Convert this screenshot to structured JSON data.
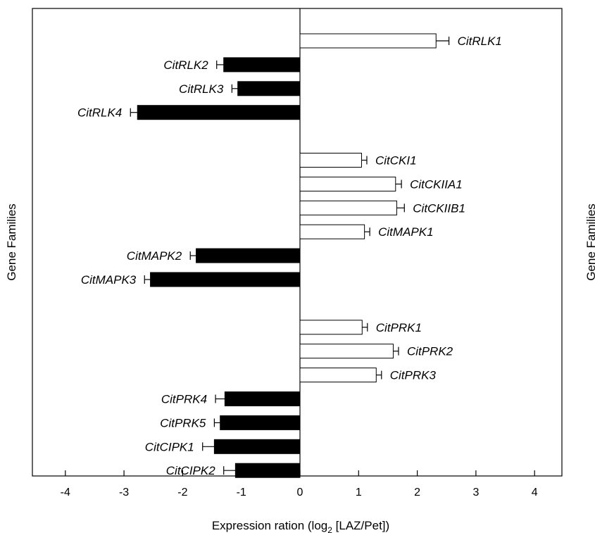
{
  "chart_data": {
    "type": "bar",
    "orientation": "horizontal",
    "ylabel": "Gene Families",
    "ylabel_right": "Gene Families",
    "xlabel_main": "Expression ration (log",
    "xlabel_sub": "2",
    "xlabel_tail": " [LAZ/Pet])",
    "xlim": [
      -4.5,
      4.5
    ],
    "xticks": [
      -4,
      -3,
      -2,
      -1,
      0,
      1,
      2,
      3,
      4
    ],
    "xtick_labels": [
      "-4",
      "-3",
      "-2",
      "-1",
      "0",
      "1",
      "2",
      "3",
      "4"
    ],
    "grid": false,
    "colors": {
      "positive": "#ffffff",
      "negative": "#000000",
      "stroke": "#000000"
    },
    "rows": [
      {
        "slot": 0,
        "label": "CitRLK1",
        "value": 2.32,
        "error": 0.22
      },
      {
        "slot": 1,
        "label": "CitRLK2",
        "value": -1.3,
        "error": 0.12
      },
      {
        "slot": 2,
        "label": "CitRLK3",
        "value": -1.06,
        "error": 0.1
      },
      {
        "slot": 3,
        "label": "CitRLK4",
        "value": -2.77,
        "error": 0.12
      },
      {
        "slot": 5,
        "label": "CitCKI1",
        "value": 1.05,
        "error": 0.09
      },
      {
        "slot": 6,
        "label": "CitCKIIA1",
        "value": 1.63,
        "error": 0.1
      },
      {
        "slot": 7,
        "label": "CitCKIIB1",
        "value": 1.65,
        "error": 0.13
      },
      {
        "slot": 8,
        "label": "CitMAPK1",
        "value": 1.1,
        "error": 0.09
      },
      {
        "slot": 9,
        "label": "CitMAPK2",
        "value": -1.77,
        "error": 0.1
      },
      {
        "slot": 10,
        "label": "CitMAPK3",
        "value": -2.55,
        "error": 0.1
      },
      {
        "slot": 12,
        "label": "CitPRK1",
        "value": 1.06,
        "error": 0.09
      },
      {
        "slot": 13,
        "label": "CitPRK2",
        "value": 1.59,
        "error": 0.09
      },
      {
        "slot": 14,
        "label": "CitPRK3",
        "value": 1.3,
        "error": 0.09
      },
      {
        "slot": 15,
        "label": "CitPRK4",
        "value": -1.28,
        "error": 0.16
      },
      {
        "slot": 16,
        "label": "CitPRK5",
        "value": -1.36,
        "error": 0.1
      },
      {
        "slot": 17,
        "label": "CitCIPK1",
        "value": -1.46,
        "error": 0.2
      },
      {
        "slot": 18,
        "label": "CitCIPK2",
        "value": -1.1,
        "error": 0.2
      }
    ]
  }
}
